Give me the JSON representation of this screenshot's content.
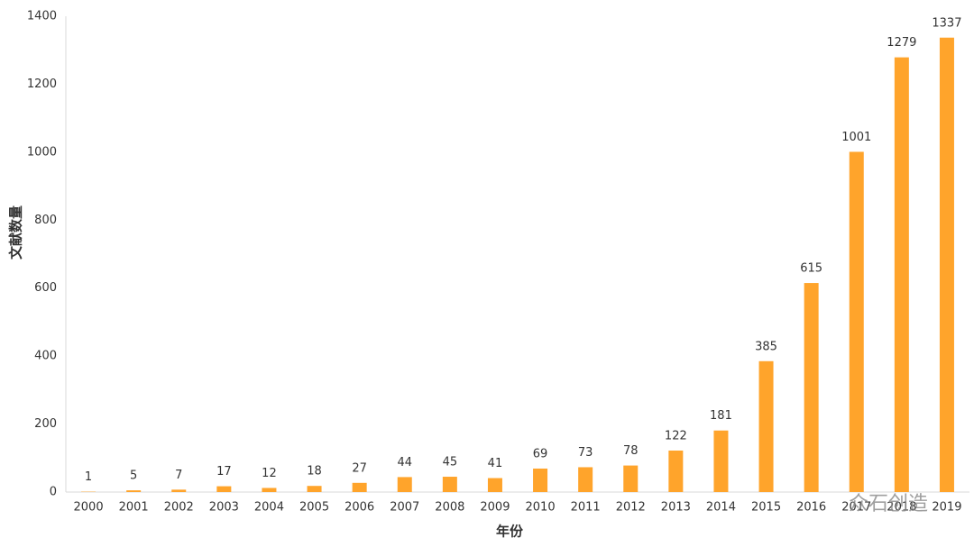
{
  "chart_data": {
    "type": "bar",
    "x_label": "年份",
    "y_label": "文献数量",
    "categories": [
      "2000",
      "2001",
      "2002",
      "2003",
      "2004",
      "2005",
      "2006",
      "2007",
      "2008",
      "2009",
      "2010",
      "2011",
      "2012",
      "2013",
      "2014",
      "2015",
      "2016",
      "2017",
      "2018",
      "2019"
    ],
    "values": [
      1,
      5,
      7,
      17,
      12,
      18,
      27,
      44,
      45,
      41,
      69,
      73,
      78,
      122,
      181,
      385,
      615,
      1001,
      1279,
      1337
    ],
    "color": "#ffa42b",
    "ylim": [
      0,
      1400
    ],
    "yticks": [
      0,
      200,
      400,
      600,
      800,
      1000,
      1200,
      1400
    ],
    "grid": false,
    "watermark": "众石创造"
  }
}
